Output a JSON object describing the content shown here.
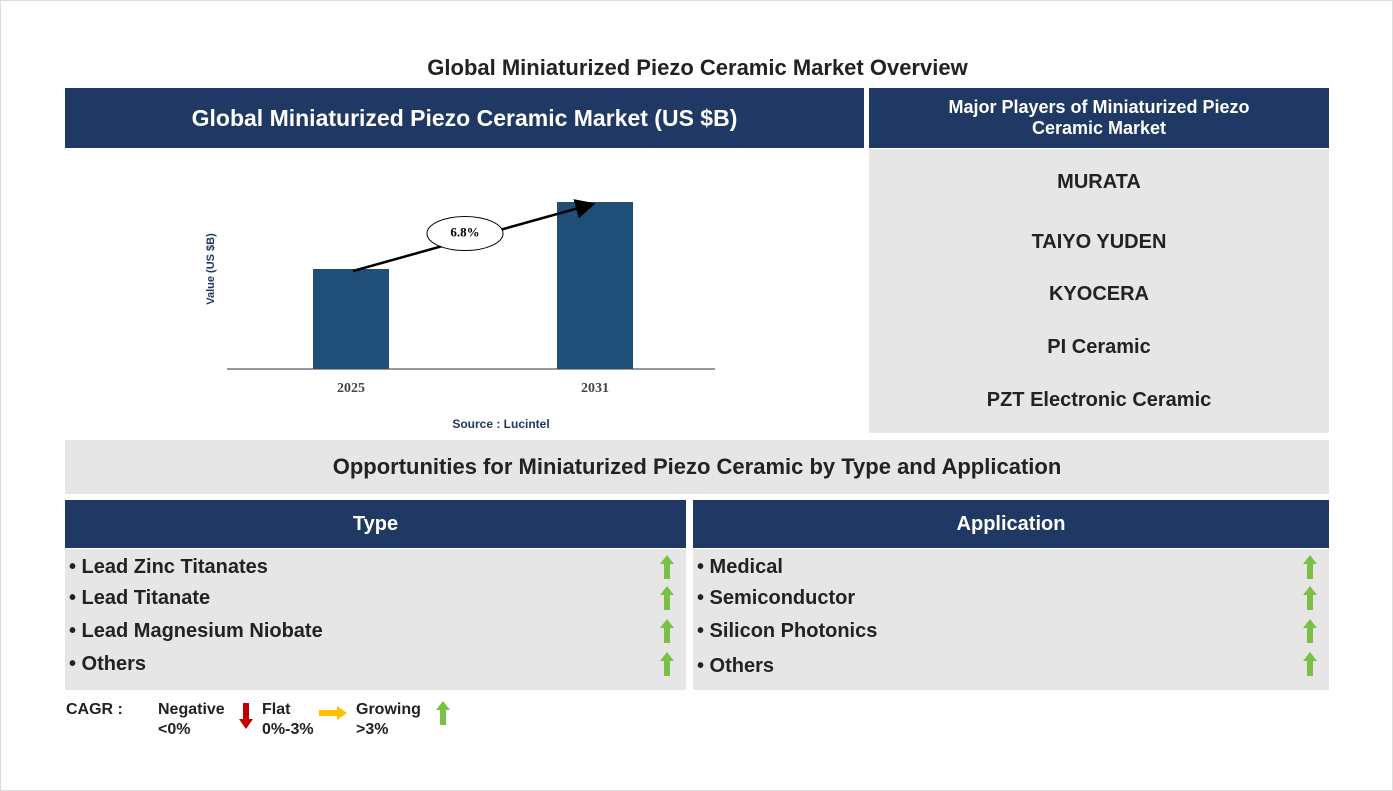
{
  "title": "Global Miniaturized Piezo Ceramic Market Overview",
  "chart_data": {
    "type": "bar",
    "title": "Global Miniaturized Piezo Ceramic Market (US $B)",
    "y_label": "Value (US $B)",
    "categories": [
      "2025",
      "2031"
    ],
    "values": [
      1,
      1.67
    ],
    "color": "#1f4e79",
    "annotation": "6.8%",
    "source": "Source : Lucintel"
  },
  "players": {
    "title": "Major Players of Miniaturized Piezo Ceramic Market",
    "items": [
      "MURATA",
      "TAIYO YUDEN",
      "KYOCERA",
      "PI Ceramic",
      "PZT Electronic Ceramic"
    ]
  },
  "opportunities": {
    "title": "Opportunities for Miniaturized Piezo Ceramic by Type and Application",
    "type": {
      "title": "Type",
      "items": [
        "Lead Zinc Titanates",
        "Lead Titanate",
        "Lead Magnesium Niobate",
        "Others"
      ]
    },
    "application": {
      "title": "Application",
      "items": [
        "Medical",
        "Semiconductor",
        "Silicon Photonics",
        "Others"
      ]
    }
  },
  "legend": {
    "label": "CAGR :",
    "items": [
      {
        "name": "Negative",
        "range": "<0%"
      },
      {
        "name": "Flat",
        "range": "0%-3%"
      },
      {
        "name": "Growing",
        "range": ">3%"
      }
    ]
  }
}
